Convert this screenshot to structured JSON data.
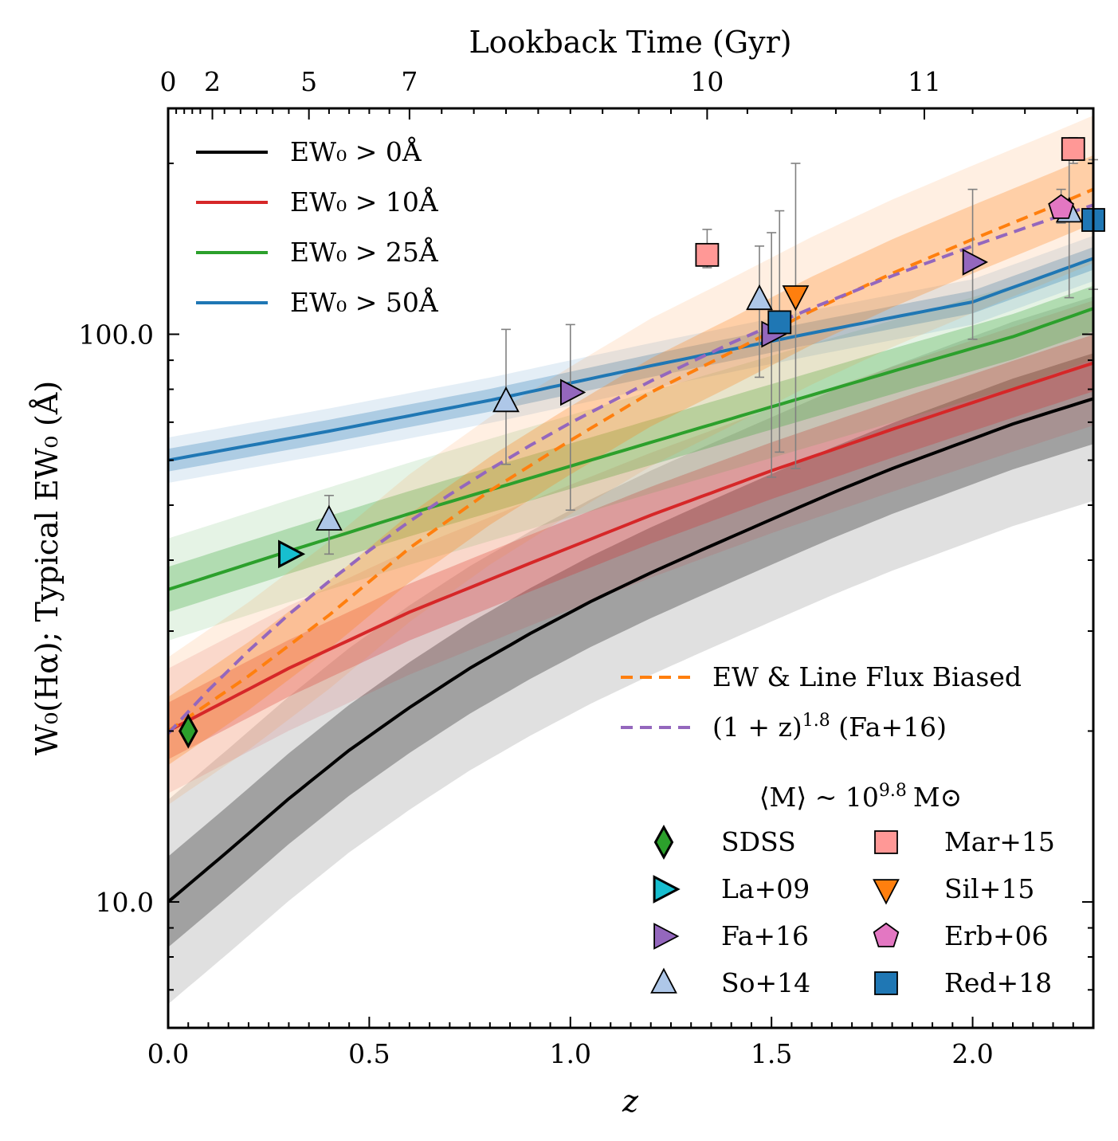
{
  "chart_data": {
    "type": "line",
    "title": "",
    "xlabel": "z",
    "ylabel": "W₀(Hα); Typical EW₀ (Å)",
    "xlim": [
      0.0,
      2.3
    ],
    "ylim": [
      6.0,
      250.0
    ],
    "yscale": "log",
    "x_ticks": [
      "0.0",
      "0.5",
      "1.0",
      "1.5",
      "2.0"
    ],
    "y_ticks": [
      "10.0",
      "100.0"
    ],
    "top_axis": {
      "label": "Lookback Time (Gyr)",
      "ticks": [
        {
          "label": "0",
          "z": 0.0
        },
        {
          "label": "2",
          "z": 0.11
        },
        {
          "label": "5",
          "z": 0.35
        },
        {
          "label": "7",
          "z": 0.6
        },
        {
          "label": "10",
          "z": 1.34
        },
        {
          "label": "11",
          "z": 1.88
        }
      ]
    },
    "series": [
      {
        "name": "EW₀ > 0Å",
        "color": "#000000",
        "band_color": "#000000",
        "x": [
          0.0,
          0.15,
          0.3,
          0.45,
          0.6,
          0.75,
          0.9,
          1.05,
          1.2,
          1.35,
          1.5,
          1.65,
          1.8,
          1.95,
          2.1,
          2.3
        ],
        "values": [
          10.0,
          12.3,
          15.2,
          18.5,
          22.0,
          25.8,
          29.7,
          33.8,
          38.0,
          42.4,
          47.2,
          52.5,
          58.0,
          63.5,
          69.5,
          77.0
        ],
        "band_inner": 0.08,
        "band_outer": 0.18
      },
      {
        "name": "EW₀ > 10Å",
        "color": "#d62728",
        "band_color": "#d62728",
        "x": [
          0.0,
          0.3,
          0.6,
          0.9,
          1.2,
          1.5,
          1.8,
          2.1,
          2.3
        ],
        "values": [
          20.0,
          25.8,
          32.4,
          39.5,
          48.0,
          57.5,
          68.0,
          80.0,
          89.0
        ],
        "band_inner": 0.05,
        "band_outer": 0.11
      },
      {
        "name": "EW₀ > 25Å",
        "color": "#2ca02c",
        "band_color": "#2ca02c",
        "x": [
          0.0,
          0.3,
          0.6,
          0.9,
          1.2,
          1.5,
          1.8,
          2.1,
          2.3
        ],
        "values": [
          35.5,
          41.5,
          48.3,
          55.8,
          64.5,
          74.5,
          86.0,
          99.0,
          111.0
        ],
        "band_inner": 0.04,
        "band_outer": 0.09
      },
      {
        "name": "EW₀ > 50Å",
        "color": "#1f77b4",
        "band_color": "#1f77b4",
        "x": [
          0.0,
          0.4,
          0.8,
          1.2,
          1.6,
          2.0,
          2.3
        ],
        "values": [
          60.0,
          67.5,
          76.5,
          88.0,
          100.5,
          114.0,
          136.0
        ],
        "band_inner": 0.02,
        "band_outer": 0.04
      },
      {
        "name": "EW & Line Flux Biased",
        "color": "#ff7f0e",
        "band_color": "#ff7f0e",
        "dashed": true,
        "x": [
          0.0,
          0.2,
          0.4,
          0.6,
          0.8,
          1.0,
          1.2,
          1.4,
          1.6,
          1.8,
          2.0,
          2.2,
          2.3
        ],
        "values": [
          20.0,
          25.0,
          32.0,
          42.0,
          53.0,
          65.0,
          79.0,
          93.0,
          110.0,
          128.0,
          147.0,
          168.0,
          180.0
        ],
        "band_inner": 0.06,
        "band_outer": 0.13
      },
      {
        "name": "(1 + z)^1.8 (Fa+16)",
        "color": "#9467bd",
        "dashed": true,
        "x": [
          0.0,
          0.1,
          0.2,
          0.3,
          0.4,
          0.5,
          0.6,
          0.7,
          0.8,
          0.9,
          1.0,
          1.2,
          1.4,
          1.6,
          1.8,
          2.0,
          2.2,
          2.3
        ],
        "values": [
          19.8,
          23.6,
          27.7,
          32.1,
          36.7,
          41.6,
          46.8,
          52.2,
          57.8,
          63.7,
          69.8,
          82.7,
          96.5,
          111.2,
          126.7,
          143.0,
          160.1,
          168.9
        ]
      }
    ],
    "legend_lines": [
      {
        "label": "EW₀ > 0Å",
        "color": "#000000"
      },
      {
        "label": "EW₀ > 10Å",
        "color": "#d62728"
      },
      {
        "label": "EW₀ > 25Å",
        "color": "#2ca02c"
      },
      {
        "label": "EW₀ > 50Å",
        "color": "#1f77b4"
      }
    ],
    "legend_model": [
      {
        "label": "EW & Line Flux Biased",
        "color": "#ff7f0e"
      },
      {
        "label": "(1 + z)",
        "exponent": "1.8",
        "suffix": " (Fa+16)",
        "color": "#9467bd"
      }
    ],
    "mass_note": "⟨M⟩ ~ 10",
    "mass_exponent": "9.8",
    "mass_unit": "M⊙",
    "observations": [
      {
        "name": "SDSS",
        "marker": "diamond",
        "color": "#2ca02c",
        "points": [
          {
            "z": 0.05,
            "ew": 20.0
          }
        ]
      },
      {
        "name": "La+09",
        "marker": "triangle-right",
        "color": "#17becf",
        "points": [
          {
            "z": 0.3,
            "ew": 41.0
          }
        ]
      },
      {
        "name": "Fa+16",
        "marker": "triangle-right",
        "color": "#9467bd",
        "points": [
          {
            "z": 1.0,
            "ew": 79.0,
            "lo": 49.0,
            "hi": 104.0
          },
          {
            "z": 1.5,
            "ew": 100.0,
            "lo": 56.0,
            "hi": 151.0
          },
          {
            "z": 2.0,
            "ew": 134.0,
            "lo": 98.0,
            "hi": 180.0
          }
        ]
      },
      {
        "name": "So+14",
        "marker": "triangle-up",
        "color": "#aec7e8",
        "points": [
          {
            "z": 0.4,
            "ew": 47.0,
            "lo": 41.0,
            "hi": 52.0
          },
          {
            "z": 0.84,
            "ew": 76.0,
            "lo": 59.0,
            "hi": 102.0
          },
          {
            "z": 1.47,
            "ew": 115.0,
            "lo": 84.0,
            "hi": 143.0
          },
          {
            "z": 2.24,
            "ew": 164.0,
            "lo": 116.0,
            "hi": 205.0
          }
        ]
      },
      {
        "name": "Mar+15",
        "marker": "square",
        "color": "#ff9896",
        "points": [
          {
            "z": 1.34,
            "ew": 138.0,
            "lo": 131.0,
            "hi": 153.0
          },
          {
            "z": 2.25,
            "ew": 212.0,
            "lo": 200.0,
            "hi": 222.0
          }
        ]
      },
      {
        "name": "Sil+15",
        "marker": "triangle-down",
        "color": "#ff7f0e",
        "points": [
          {
            "z": 1.56,
            "ew": 117.0,
            "lo": 58.0,
            "hi": 200.0
          }
        ]
      },
      {
        "name": "Erb+06",
        "marker": "pentagon",
        "color": "#e377c2",
        "points": [
          {
            "z": 2.22,
            "ew": 167.0,
            "lo": 157.0,
            "hi": 180.0
          }
        ]
      },
      {
        "name": "Red+18",
        "marker": "square",
        "color": "#1f77b4",
        "points": [
          {
            "z": 1.52,
            "ew": 105.0,
            "lo": 62.0,
            "hi": 165.0
          },
          {
            "z": 2.3,
            "ew": 159.0,
            "lo": 120.0,
            "hi": 203.0
          }
        ]
      }
    ]
  }
}
